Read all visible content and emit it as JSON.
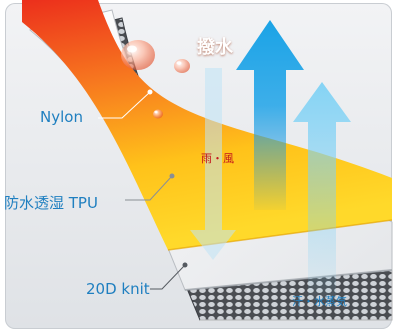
{
  "labels": {
    "nylon": "Nylon",
    "tpu": "防水透湿 TPU",
    "knit": "20D knit"
  },
  "callouts": {
    "water_repellent": "撥水",
    "rain_wind": "雨・風",
    "sweat_vapor": "汗・水蒸気"
  },
  "colors": {
    "label_blue": "#1f7fc0",
    "arrow_blue": "#1aa3e6",
    "rain_red": "#c3161c",
    "nylon_top": "#ee3a1a",
    "nylon_bottom": "#ffd21a"
  }
}
